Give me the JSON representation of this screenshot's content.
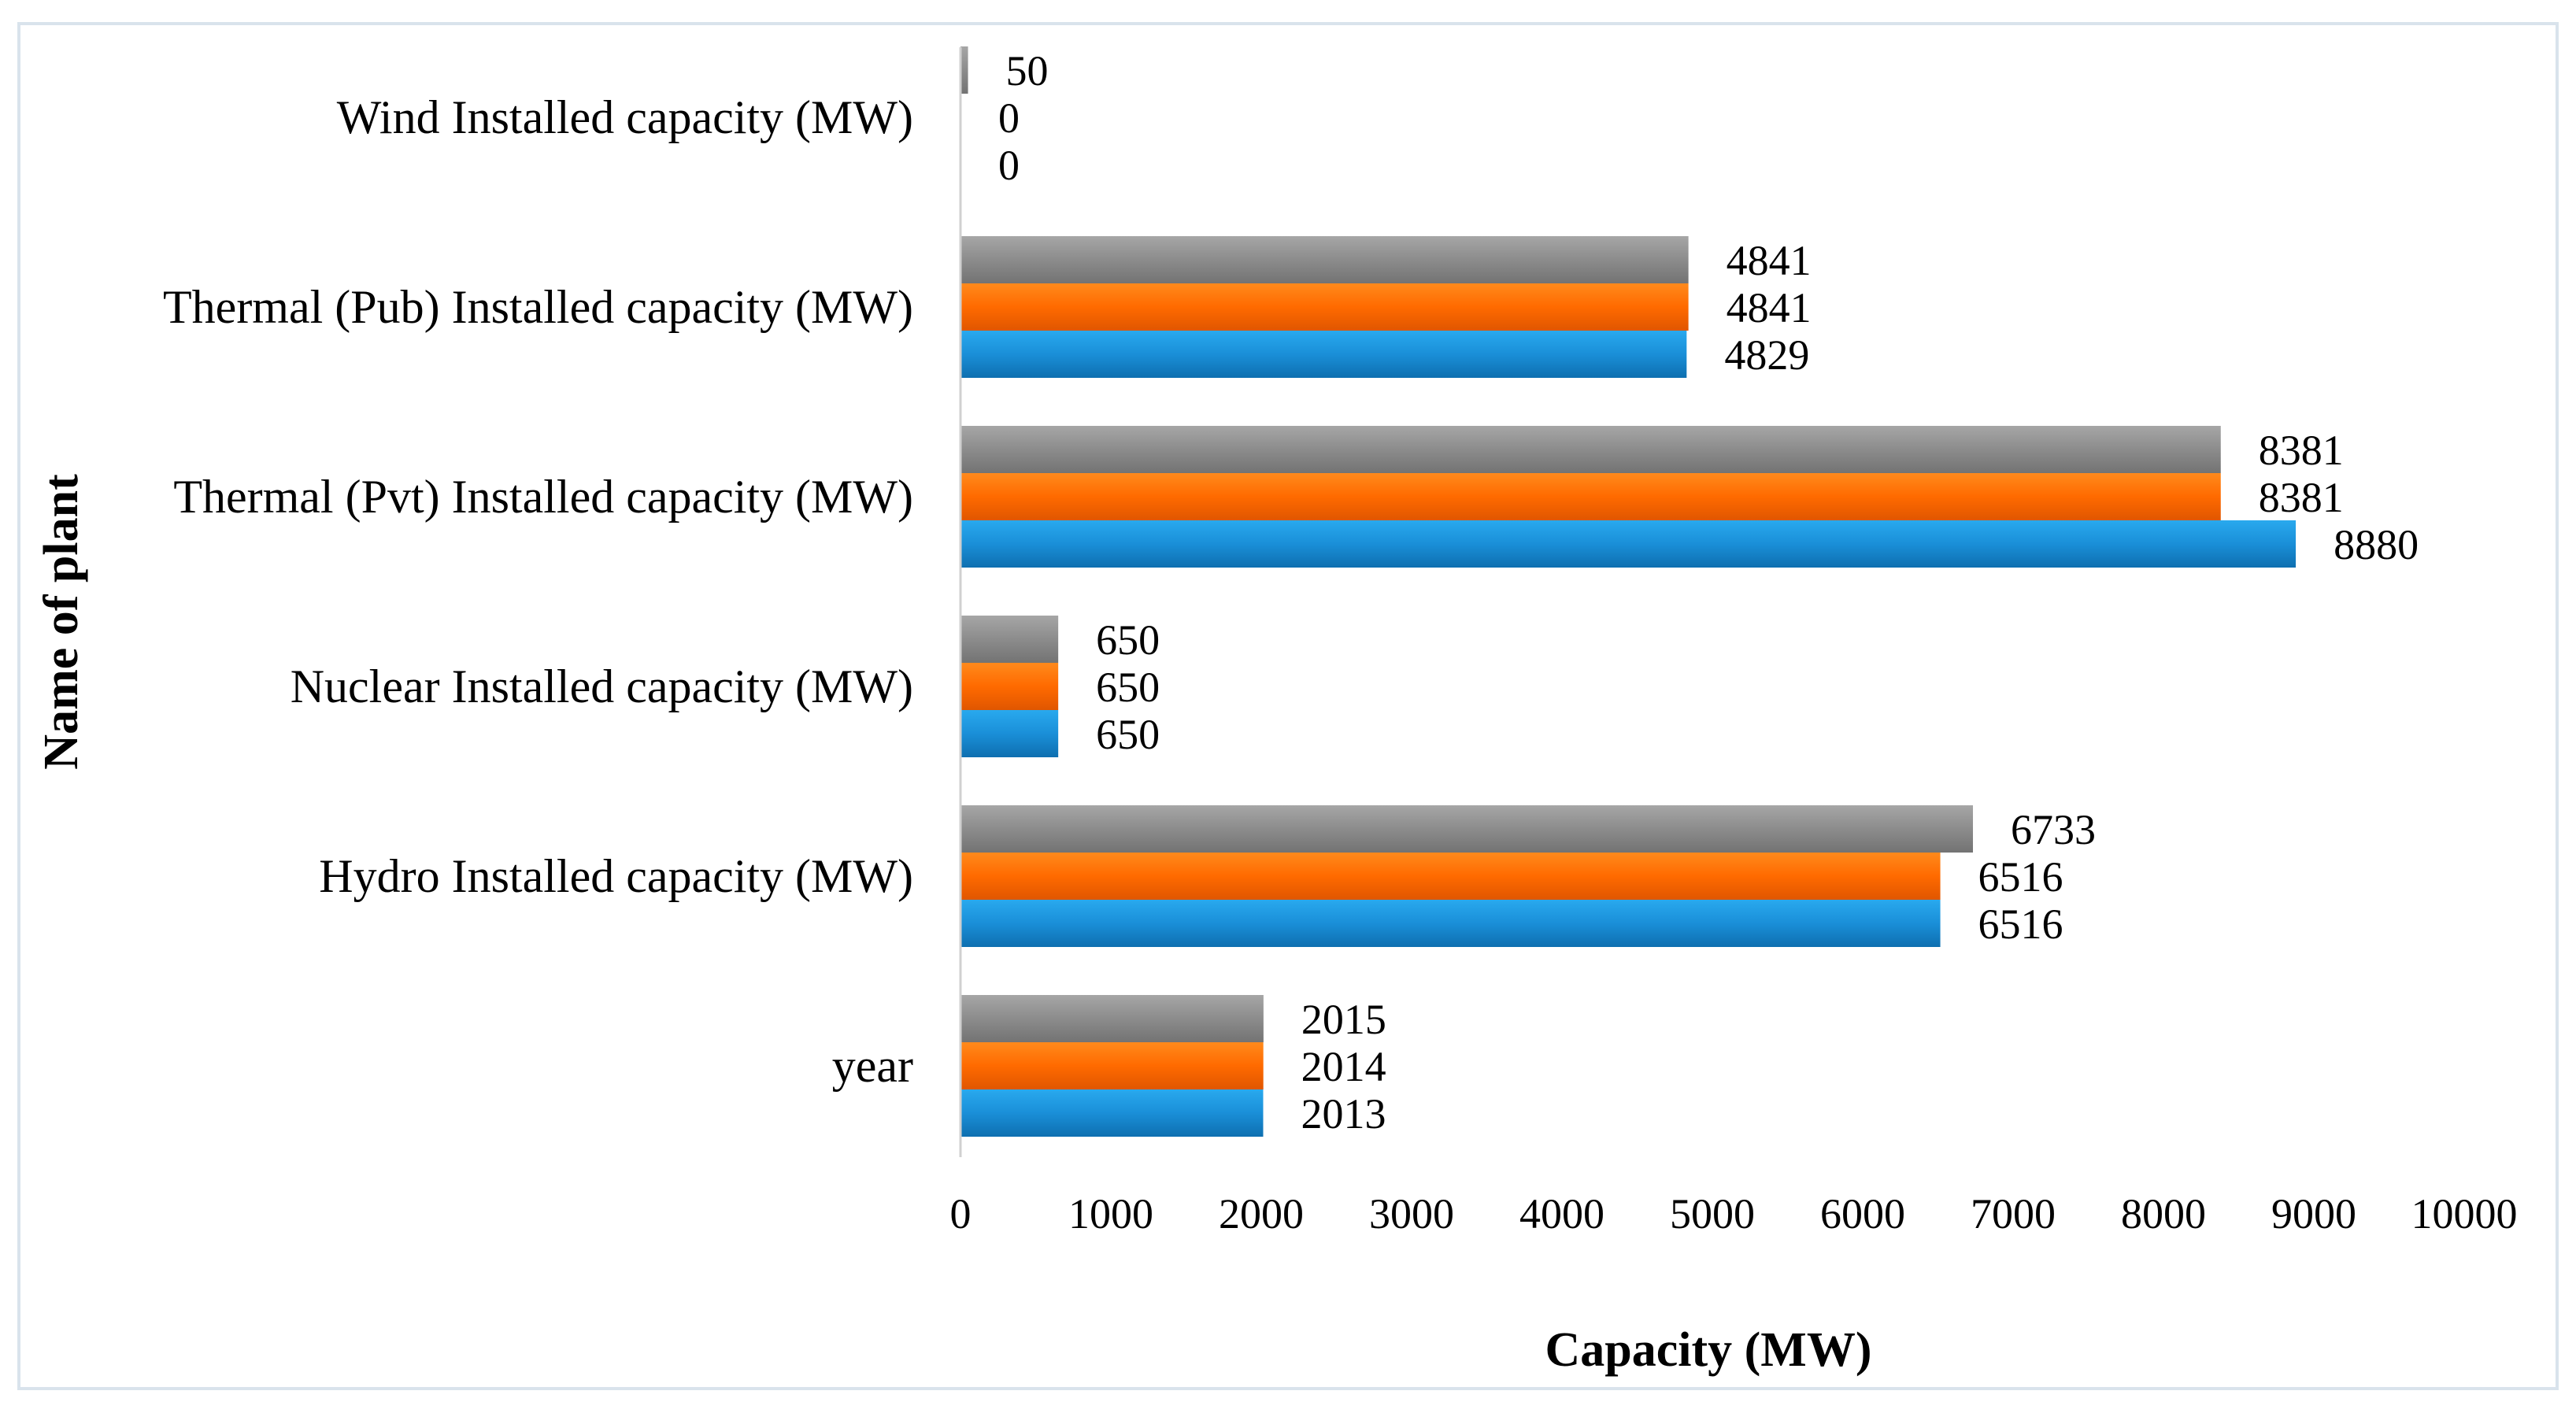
{
  "chart_data": {
    "type": "bar",
    "orientation": "horizontal",
    "title": "",
    "xlabel": "Capacity (MW)",
    "ylabel": "Name of  plant",
    "xlim": [
      0,
      10000
    ],
    "x_ticks": [
      "0",
      "1000",
      "2000",
      "3000",
      "4000",
      "5000",
      "6000",
      "7000",
      "8000",
      "9000",
      "10000"
    ],
    "categories": [
      "year",
      "Hydro Installed capacity (MW)",
      "Nuclear Installed capacity (MW)",
      "Thermal (Pvt) Installed capacity (MW)",
      "Thermal (Pub) Installed capacity (MW)",
      "Wind Installed capacity (MW)"
    ],
    "series": [
      {
        "name": "2013",
        "color": "#1a8fd8",
        "values": [
          2013,
          6516,
          650,
          8880,
          4829,
          0
        ]
      },
      {
        "name": "2014",
        "color": "#ff6a00",
        "values": [
          2014,
          6516,
          650,
          8381,
          4841,
          0
        ]
      },
      {
        "name": "2015",
        "color": "#8c8c8c",
        "values": [
          2015,
          6733,
          650,
          8381,
          4841,
          50
        ]
      }
    ],
    "grid": false,
    "legend": "none"
  }
}
